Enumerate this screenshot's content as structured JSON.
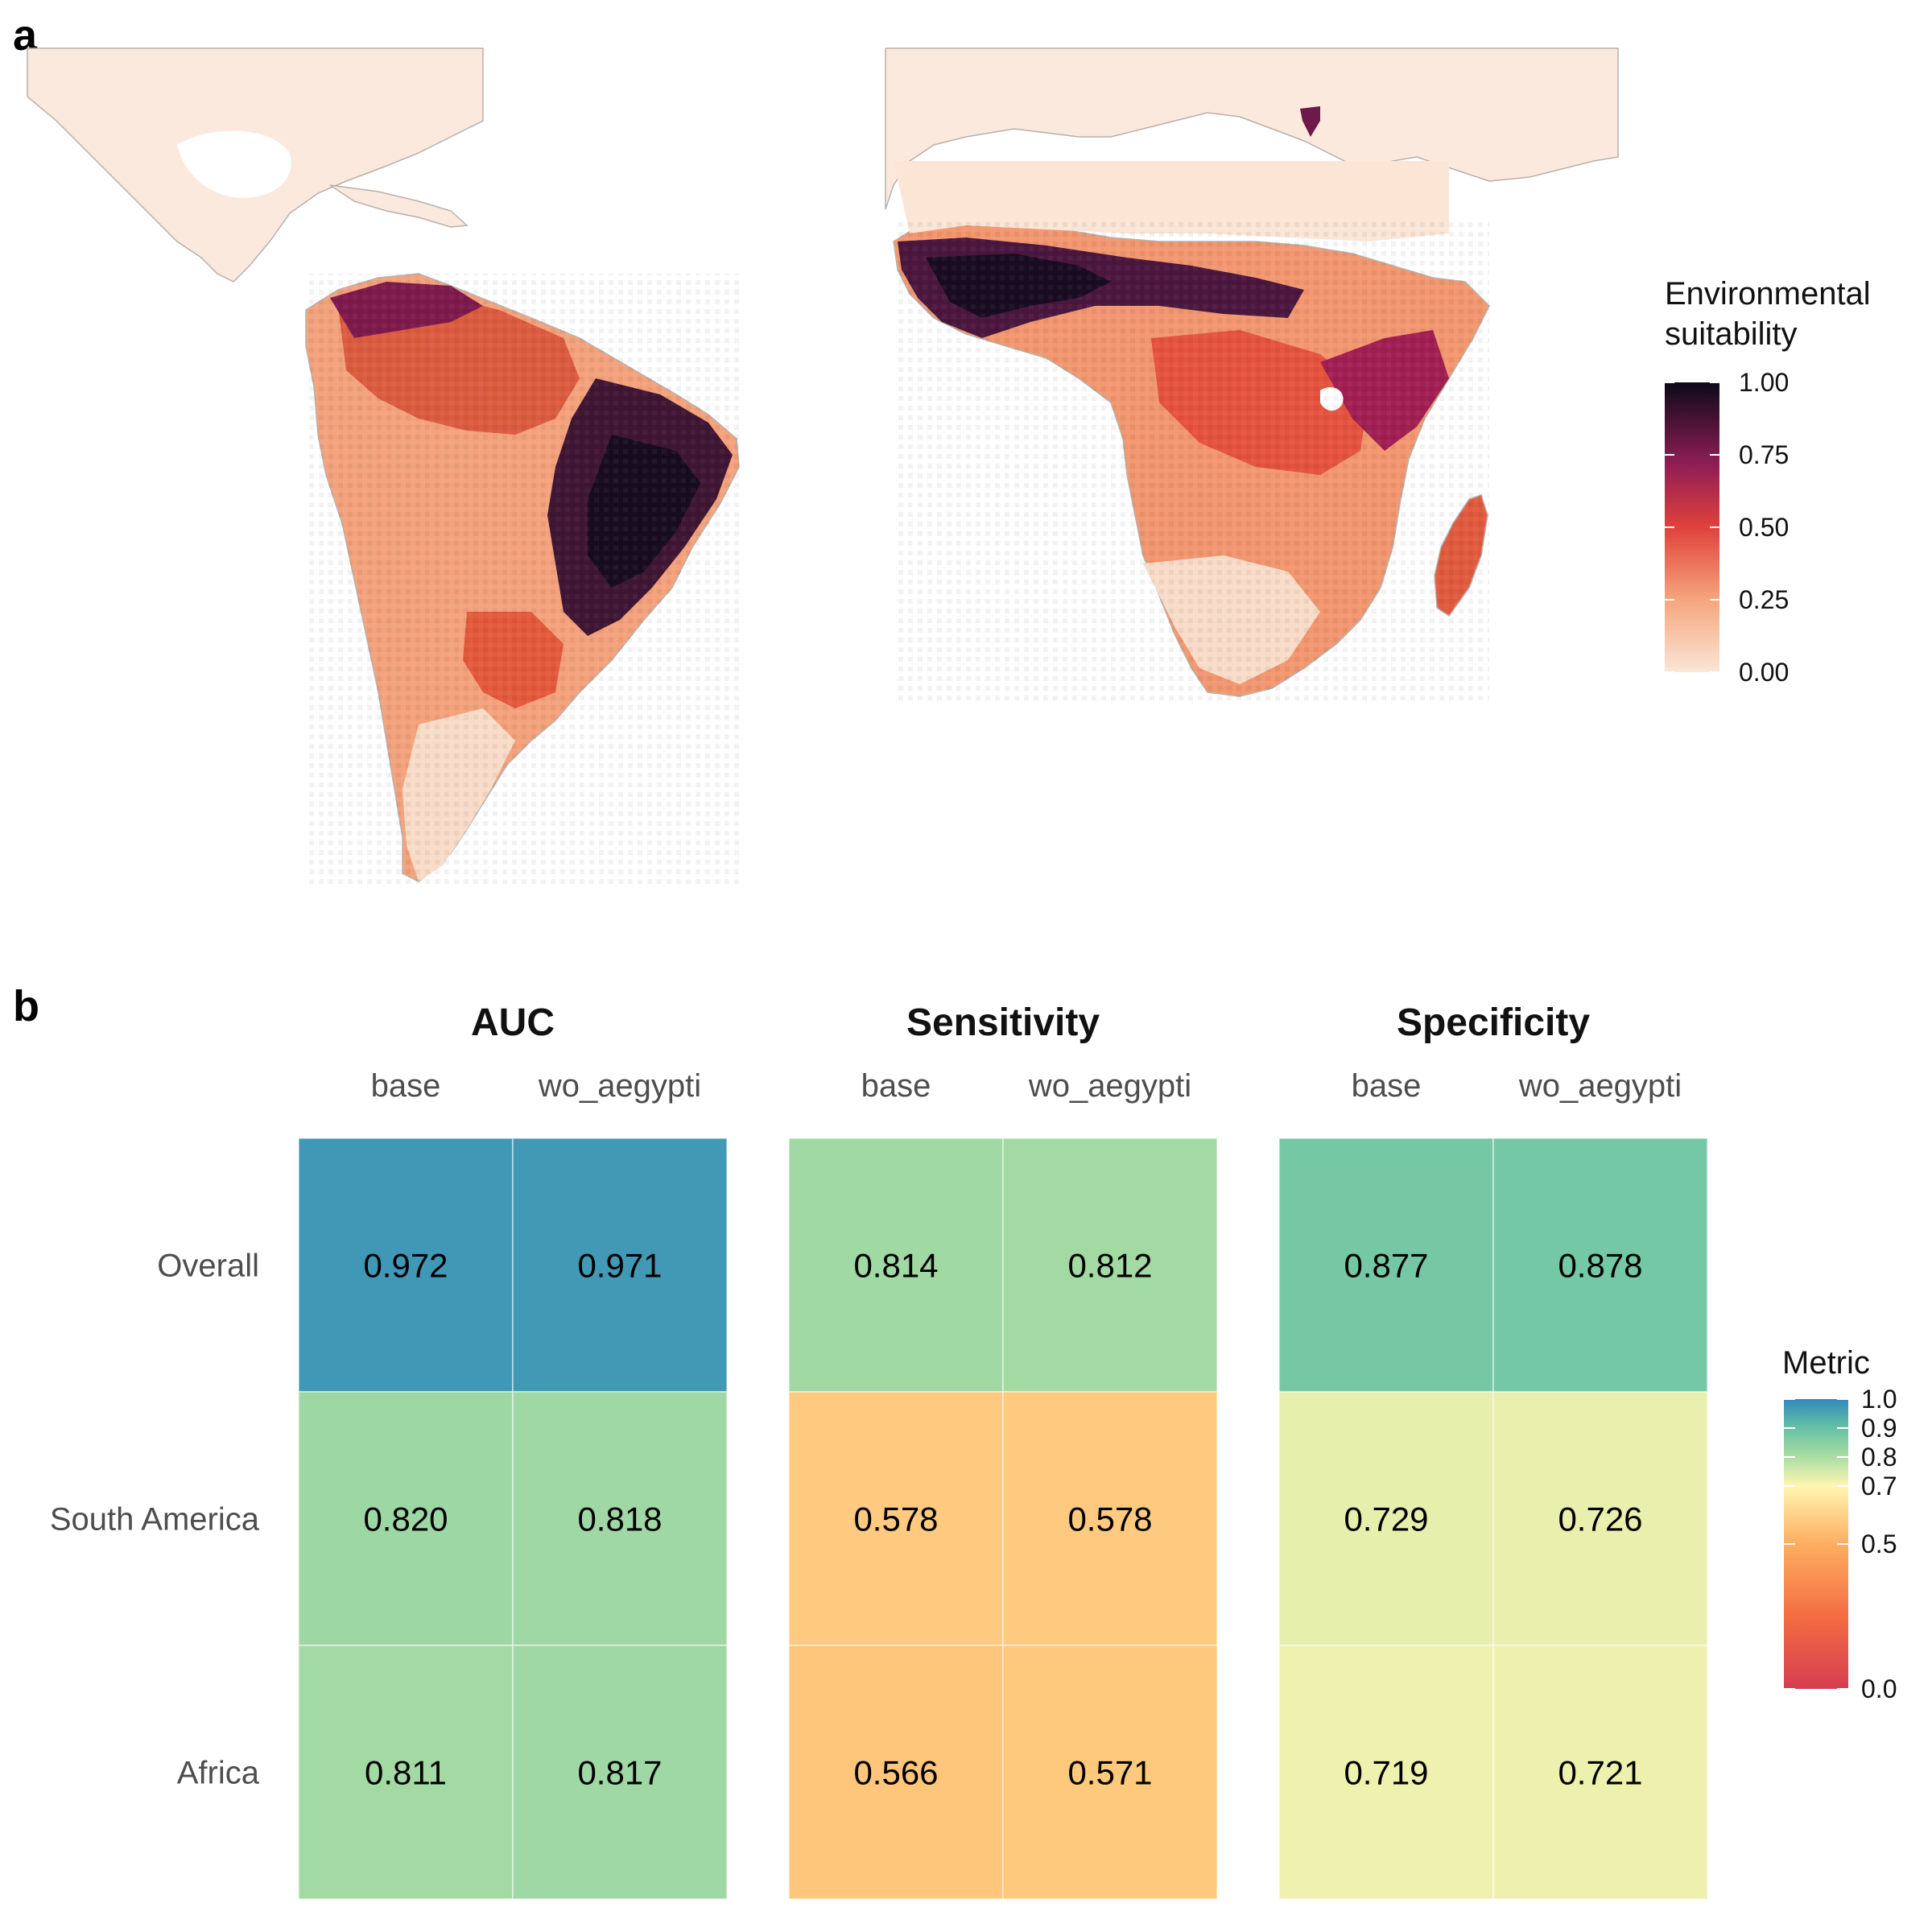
{
  "panel_labels": {
    "a": "a",
    "b": "b"
  },
  "map": {
    "legend_title_line1": "Environmental",
    "legend_title_line2": "suitability",
    "legend_ticks": [
      "1.00",
      "0.75",
      "0.50",
      "0.25",
      "0.00"
    ],
    "colors": {
      "land": "#fbe9dd",
      "low": "#f8dcc8",
      "mid1": "#f3956b",
      "mid2": "#e14b3a",
      "high1": "#a41e52",
      "high2": "#4d1a45",
      "top": "#120b1f",
      "border": "#b8b0aa"
    }
  },
  "chart_data": {
    "type": "heatmap",
    "facets": [
      "AUC",
      "Sensitivity",
      "Specificity"
    ],
    "columns": [
      "base",
      "wo_aegypti"
    ],
    "rows": [
      "Overall",
      "South America",
      "Africa"
    ],
    "values": {
      "AUC": [
        [
          0.972,
          0.971
        ],
        [
          0.82,
          0.818
        ],
        [
          0.811,
          0.817
        ]
      ],
      "Sensitivity": [
        [
          0.814,
          0.812
        ],
        [
          0.578,
          0.578
        ],
        [
          0.566,
          0.571
        ]
      ],
      "Specificity": [
        [
          0.877,
          0.878
        ],
        [
          0.729,
          0.726
        ],
        [
          0.719,
          0.721
        ]
      ]
    },
    "value_labels": {
      "AUC": [
        [
          "0.972",
          "0.971"
        ],
        [
          "0.820",
          "0.818"
        ],
        [
          "0.811",
          "0.817"
        ]
      ],
      "Sensitivity": [
        [
          "0.814",
          "0.812"
        ],
        [
          "0.578",
          "0.578"
        ],
        [
          "0.566",
          "0.571"
        ]
      ],
      "Specificity": [
        [
          "0.877",
          "0.878"
        ],
        [
          "0.729",
          "0.726"
        ],
        [
          "0.719",
          "0.721"
        ]
      ]
    },
    "legend": {
      "title": "Metric",
      "ticks": [
        "1.0",
        "0.9",
        "0.8",
        "0.7",
        "0.5",
        "0.0"
      ],
      "tick_values": [
        1.0,
        0.9,
        0.8,
        0.7,
        0.5,
        0.0
      ],
      "range": [
        0,
        1
      ]
    },
    "colors": {
      "1.0": "#3288bd",
      "0.9": "#66c2a5",
      "0.8": "#abdda4",
      "0.7": "#fee08b",
      "0.5": "#fdae61",
      "0.0": "#d53e4f"
    }
  }
}
